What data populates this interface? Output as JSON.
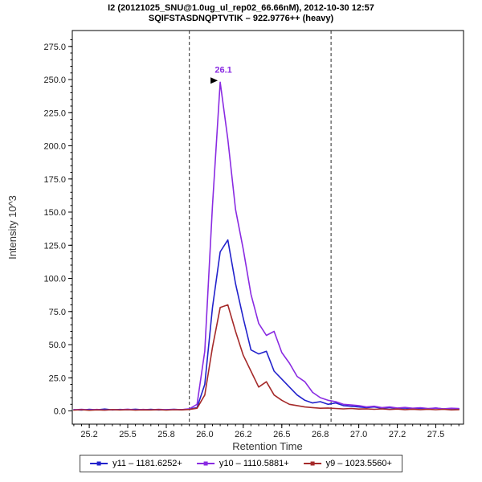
{
  "title": {
    "line1": "I2 (20121025_SNU@1.0ug_ul_rep02_66.66nM), 2012-10-30 12:57",
    "line2": "SQIFSTASDNQPTVTIK – 922.9776++ (heavy)"
  },
  "chart_data": {
    "type": "line",
    "title": "I2 (20121025_SNU@1.0ug_ul_rep02_66.66nM), 2012-10-30 12:57 / SQIFSTASDNQPTVTIK – 922.9776++ (heavy)",
    "xlabel": "Retention Time",
    "ylabel": "Intensity 10^3",
    "xlim": [
      25.14,
      27.68
    ],
    "ylim": [
      -10,
      287
    ],
    "grid": false,
    "legend_position": "bottom",
    "xticks": [
      25.25,
      25.5,
      25.75,
      26.0,
      26.25,
      26.5,
      26.75,
      27.0,
      27.25,
      27.5
    ],
    "xtick_labels": [
      "25.2",
      "25.5",
      "25.8",
      "26.0",
      "26.2",
      "26.5",
      "26.8",
      "27.0",
      "27.2",
      "27.5"
    ],
    "yticks": [
      0,
      25,
      50,
      75,
      100,
      125,
      150,
      175,
      200,
      225,
      250,
      275
    ],
    "ytick_labels": [
      "0.0",
      "25.0",
      "50.0",
      "75.0",
      "100.0",
      "125.0",
      "150.0",
      "175.0",
      "200.0",
      "225.0",
      "250.0",
      "275.0"
    ],
    "boundaries": [
      25.9,
      26.82
    ],
    "annotation": {
      "x": 26.1,
      "y": 248,
      "label": "26.1",
      "color": "#8a2be2"
    },
    "x": [
      25.15,
      25.2,
      25.25,
      25.3,
      25.35,
      25.4,
      25.45,
      25.5,
      25.55,
      25.6,
      25.65,
      25.7,
      25.75,
      25.8,
      25.85,
      25.9,
      25.95,
      26.0,
      26.05,
      26.1,
      26.15,
      26.2,
      26.25,
      26.3,
      26.35,
      26.4,
      26.45,
      26.5,
      26.55,
      26.6,
      26.65,
      26.7,
      26.75,
      26.8,
      26.85,
      26.9,
      26.95,
      27.0,
      27.05,
      27.1,
      27.15,
      27.2,
      27.25,
      27.3,
      27.35,
      27.4,
      27.45,
      27.5,
      27.55,
      27.6,
      27.65
    ],
    "series": [
      {
        "name": "y11 – 1181.6252+",
        "color": "#2222cc",
        "values": [
          1.0,
          0.6,
          1.2,
          0.8,
          1.4,
          0.7,
          1.1,
          0.9,
          1.3,
          0.8,
          1.2,
          0.7,
          1.0,
          1.2,
          0.9,
          1.4,
          2.5,
          20,
          78,
          120,
          129,
          96,
          70,
          46,
          43,
          45,
          30,
          24,
          18,
          12,
          8,
          6,
          7,
          5,
          6,
          4,
          3.5,
          3,
          2.5,
          3,
          2,
          2.5,
          1.8,
          2.2,
          1.6,
          2.0,
          1.5,
          2.2,
          1.4,
          1.8,
          1.5
        ]
      },
      {
        "name": "y10 – 1110.5881+",
        "color": "#8a2be2",
        "values": [
          0.8,
          1.2,
          0.7,
          1.1,
          0.6,
          1.0,
          0.9,
          1.3,
          0.7,
          1.1,
          0.8,
          1.2,
          0.9,
          1.1,
          1.0,
          1.6,
          5,
          45,
          155,
          248,
          205,
          152,
          122,
          88,
          66,
          57,
          60,
          44,
          36,
          26,
          22,
          14,
          10,
          8,
          7,
          5,
          4.5,
          4,
          3,
          3.5,
          2.5,
          3,
          2.2,
          2.6,
          2,
          2.4,
          1.8,
          2.2,
          1.6,
          2.0,
          1.8
        ]
      },
      {
        "name": "y9 – 1023.5560+",
        "color": "#a52a2a",
        "values": [
          0.6,
          0.9,
          0.5,
          0.8,
          0.6,
          1.0,
          0.7,
          0.9,
          0.6,
          0.8,
          0.7,
          1.0,
          0.6,
          0.9,
          0.8,
          1.1,
          2,
          12,
          48,
          78,
          80,
          60,
          42,
          30,
          18,
          22,
          12,
          8,
          5,
          4,
          3,
          2.5,
          2,
          2.2,
          1.8,
          1.5,
          1.8,
          1.4,
          1.6,
          1.2,
          1.5,
          1.1,
          1.4,
          1.0,
          1.3,
          1.0,
          1.2,
          0.9,
          1.2,
          0.8,
          1.0
        ]
      }
    ]
  }
}
